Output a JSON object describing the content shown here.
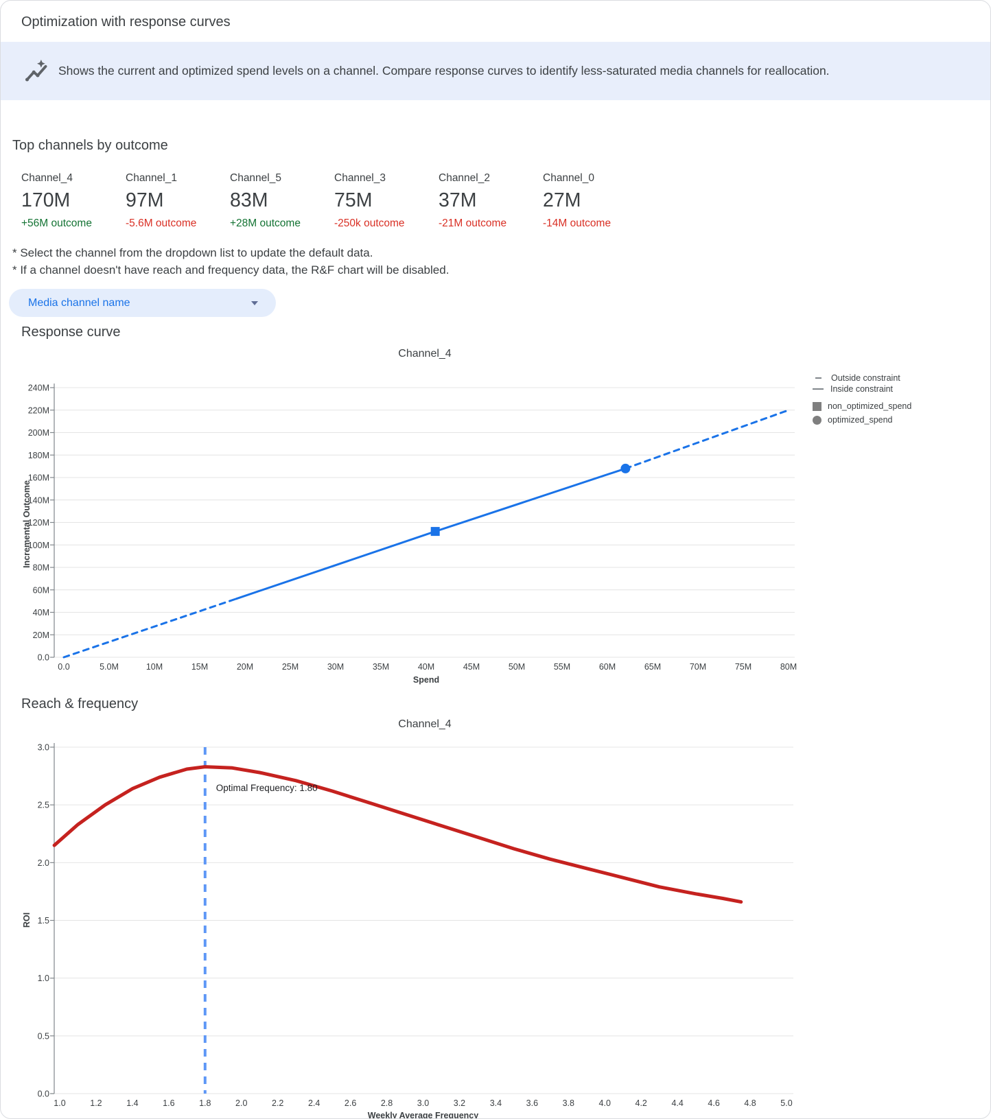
{
  "header": {
    "title": "Optimization with response curves"
  },
  "banner": {
    "icon": "insights-icon",
    "text": "Shows the current and optimized spend levels on a channel. Compare response curves to identify less-saturated media channels for reallocation."
  },
  "top_channels": {
    "heading": "Top channels by outcome",
    "channels": [
      {
        "name": "Channel_4",
        "value": "170M",
        "outcome": "+56M outcome",
        "trend": "positive"
      },
      {
        "name": "Channel_1",
        "value": "97M",
        "outcome": "-5.6M outcome",
        "trend": "negative"
      },
      {
        "name": "Channel_5",
        "value": "83M",
        "outcome": "+28M outcome",
        "trend": "positive"
      },
      {
        "name": "Channel_3",
        "value": "75M",
        "outcome": "-250k outcome",
        "trend": "negative"
      },
      {
        "name": "Channel_2",
        "value": "37M",
        "outcome": "-21M outcome",
        "trend": "negative"
      },
      {
        "name": "Channel_0",
        "value": "27M",
        "outcome": "-14M outcome",
        "trend": "negative"
      }
    ]
  },
  "notes": {
    "line1": "* Select the channel from the dropdown list to update the default data.",
    "line2": "* If a channel doesn't have reach and frequency data, the R&F chart will be disabled."
  },
  "dropdown": {
    "label": "Media channel name"
  },
  "response_curve": {
    "heading": "Response curve"
  },
  "reach_frequency": {
    "heading": "Reach & frequency"
  },
  "legend": {
    "items": [
      {
        "marker": "dash-short",
        "label": "Outside constraint"
      },
      {
        "marker": "dash-long",
        "label": "Inside constraint"
      },
      {
        "marker": "square",
        "label": "non_optimized_spend"
      },
      {
        "marker": "circle",
        "label": "optimized_spend"
      }
    ]
  },
  "colors": {
    "accent_blue": "#1a73e8",
    "positive_green": "#137333",
    "negative_red": "#d93025",
    "banner_bg": "#e8eefb",
    "pill_bg": "#e4edfc",
    "rf_red": "#c5221f",
    "optimal_line_blue": "#5e97f6",
    "legend_gray": "#7f7f7f"
  },
  "chart_data": [
    {
      "type": "line",
      "title": "Channel_4",
      "xlabel": "Spend",
      "ylabel": "Incremental Outcome",
      "xlim": [
        0,
        80
      ],
      "ylim": [
        0,
        240
      ],
      "xtick_step": 5,
      "ytick_step": 20,
      "grid": "horizontal",
      "legend_position": "right",
      "line_color": "#1a73e8",
      "segments": [
        {
          "name": "outside-constraint-lower",
          "style": "dashed",
          "points": [
            [
              0,
              0
            ],
            [
              19,
              52
            ]
          ]
        },
        {
          "name": "inside-constraint",
          "style": "solid",
          "points": [
            [
              19,
              52
            ],
            [
              41,
              112
            ],
            [
              62,
              168
            ]
          ]
        },
        {
          "name": "outside-constraint-upper",
          "style": "dashed",
          "points": [
            [
              62,
              168
            ],
            [
              80,
              220
            ]
          ]
        }
      ],
      "markers": [
        {
          "name": "non_optimized_spend",
          "shape": "square",
          "x": 41,
          "y": 112
        },
        {
          "name": "optimized_spend",
          "shape": "circle",
          "x": 62,
          "y": 168
        }
      ]
    },
    {
      "type": "line",
      "title": "Channel_4",
      "xlabel": "Weekly Average Frequency",
      "ylabel": "ROI",
      "xlim": [
        1.0,
        5.0
      ],
      "ylim": [
        0,
        3.0
      ],
      "xtick_step": 0.2,
      "ytick_step": 0.5,
      "grid": "horizontal",
      "curve_color": "#c5221f",
      "optimal_line_color": "#5e97f6",
      "optimal_frequency": 1.8,
      "annotation": "Optimal Frequency: 1.80",
      "curve": [
        [
          0.97,
          2.15
        ],
        [
          1.1,
          2.33
        ],
        [
          1.25,
          2.5
        ],
        [
          1.4,
          2.64
        ],
        [
          1.55,
          2.74
        ],
        [
          1.7,
          2.81
        ],
        [
          1.8,
          2.83
        ],
        [
          1.95,
          2.82
        ],
        [
          2.1,
          2.78
        ],
        [
          2.3,
          2.71
        ],
        [
          2.5,
          2.62
        ],
        [
          2.7,
          2.52
        ],
        [
          2.9,
          2.42
        ],
        [
          3.1,
          2.32
        ],
        [
          3.3,
          2.22
        ],
        [
          3.5,
          2.12
        ],
        [
          3.7,
          2.03
        ],
        [
          3.9,
          1.95
        ],
        [
          4.1,
          1.87
        ],
        [
          4.3,
          1.79
        ],
        [
          4.5,
          1.73
        ],
        [
          4.65,
          1.69
        ],
        [
          4.75,
          1.66
        ]
      ]
    }
  ]
}
